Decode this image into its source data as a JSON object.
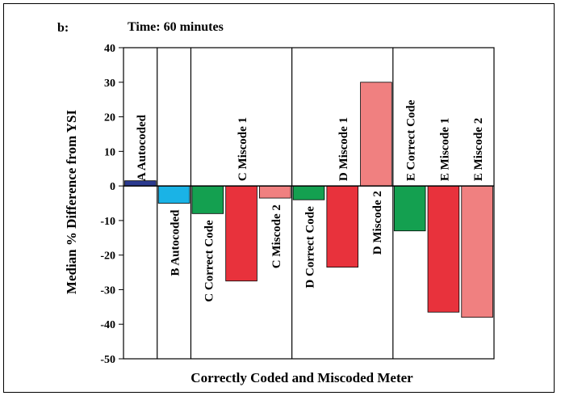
{
  "chart_data": {
    "type": "bar",
    "panel_label": "b:",
    "title": "Time: 60 minutes",
    "xlabel": "Correctly Coded and Miscoded Meter",
    "ylabel": "Median % Difference from YSI",
    "ylim": [
      -50,
      40
    ],
    "yticks": [
      40,
      30,
      20,
      10,
      0,
      -10,
      -20,
      -30,
      -40,
      -50
    ],
    "grid": false,
    "legend": "none",
    "categories": [
      "A Autocoded",
      "B Autocoded",
      "C Correct Code",
      "C Miscode 1",
      "C Miscode 2",
      "D Correct Code",
      "D Miscode 1",
      "D Miscode 2",
      "E Correct Code",
      "E Miscode 1",
      "E Miscode 2"
    ],
    "values": [
      1.5,
      -5,
      -8,
      -27.5,
      -3.5,
      -4,
      -23.5,
      30,
      -13,
      -36.5,
      -38
    ],
    "colors": [
      "#2b3a8f",
      "#1ab3e6",
      "#14a050",
      "#e8323c",
      "#f08080",
      "#14a050",
      "#e8323c",
      "#f08080",
      "#14a050",
      "#e8323c",
      "#f08080"
    ],
    "group_separators_after": [
      0,
      1,
      4,
      7
    ]
  }
}
